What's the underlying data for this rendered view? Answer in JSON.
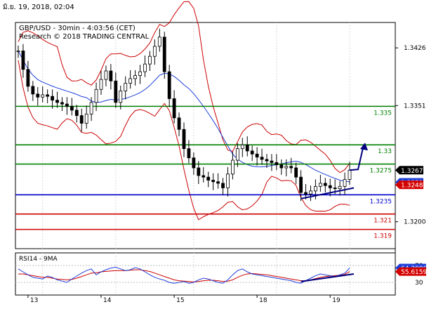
{
  "header": {
    "datetime": "มิ.ย. 19, 2018, 02:04"
  },
  "chart_data": [
    {
      "type": "line",
      "title": "GBP/USD - 30min - 4:03:56 (CET)",
      "subtitle": "Research © 2018 TRADING CENTRAL",
      "ylim": [
        3.1965,
        3.1459
      ],
      "y_ticks": [
        1.3426,
        1.3351,
        1.32
      ],
      "x_tick_labels": [
        "13",
        "14",
        "15",
        "18",
        "19"
      ],
      "levels": [
        {
          "label": "1.335",
          "value": 1.335,
          "color": "#008000"
        },
        {
          "label": "1.33",
          "value": 1.33,
          "color": "#008000"
        },
        {
          "label": "1.3275",
          "value": 1.3275,
          "color": "#008000"
        },
        {
          "label": "1.3235",
          "value": 1.3235,
          "color": "#0000cc"
        },
        {
          "label": "1.321",
          "value": 1.321,
          "color": "#cc0000"
        },
        {
          "label": "1.319",
          "value": 1.319,
          "color": "#cc0000"
        }
      ],
      "price_labels": [
        {
          "label": "1.3267",
          "value": 1.3267,
          "bg": "#000000",
          "fg": "#ffffff"
        },
        {
          "label": "1.32513",
          "value": 1.32513,
          "bg": "#1f3fd8",
          "fg": "#ffffff"
        },
        {
          "label": "1.3248",
          "value": 1.3248,
          "bg": "#d40000",
          "fg": "#ffffff"
        }
      ],
      "series": [
        {
          "values": [
            1.3422,
            1.3398,
            1.3376,
            1.3366,
            1.3362,
            1.3365,
            1.3363,
            1.3358,
            1.3355,
            1.3353,
            1.335,
            1.3345,
            1.3338,
            1.3328,
            1.334,
            1.3355,
            1.3372,
            1.3385,
            1.3396,
            1.3383,
            1.3355,
            1.337,
            1.338,
            1.3386,
            1.339,
            1.3395,
            1.3405,
            1.3415,
            1.3428,
            1.344,
            1.3395,
            1.336,
            1.3335,
            1.332,
            1.3295,
            1.3283,
            1.327,
            1.326,
            1.3258,
            1.3254,
            1.3252,
            1.325,
            1.3244,
            1.3262,
            1.328,
            1.3295,
            1.33,
            1.3292,
            1.3288,
            1.3284,
            1.3281,
            1.3279,
            1.3277,
            1.3274,
            1.327,
            1.3272,
            1.327,
            1.3258,
            1.3238,
            1.3236,
            1.324,
            1.3246,
            1.325,
            1.3247,
            1.3244,
            1.3243,
            1.3246,
            1.3255,
            1.3267
          ]
        }
      ]
    },
    {
      "type": "line",
      "title": "RSI14 - 9MA",
      "ylim": [
        0,
        100
      ],
      "y_ticks": [
        70,
        30
      ],
      "price_labels": [
        {
          "label": "64.2006",
          "value": 64.2006,
          "bg": "#1f3fd8",
          "fg": "#ffffff"
        },
        {
          "label": "55.6159",
          "value": 55.6159,
          "bg": "#d40000",
          "fg": "#ffffff"
        }
      ],
      "series": [
        {
          "values": [
            62,
            55,
            48,
            42,
            40,
            38,
            45,
            42,
            36,
            33,
            30,
            38,
            45,
            52,
            58,
            62,
            48,
            55,
            60,
            64,
            66,
            62,
            58,
            60,
            65,
            62,
            55,
            48,
            42,
            38,
            35,
            30,
            28,
            30,
            32,
            28,
            30,
            36,
            40,
            38,
            34,
            30,
            28,
            36,
            48,
            58,
            62,
            55,
            50,
            48,
            46,
            44,
            42,
            40,
            38,
            36,
            34,
            30,
            28,
            34,
            40,
            46,
            50,
            48,
            46,
            44,
            48,
            52,
            64.2
          ]
        },
        {
          "values": [
            50,
            50,
            48,
            46,
            44,
            42,
            42,
            40,
            38,
            37,
            36,
            37,
            40,
            44,
            48,
            52,
            53,
            55,
            56,
            57,
            58,
            58,
            58,
            59,
            60,
            60,
            58,
            56,
            52,
            48,
            44,
            40,
            36,
            34,
            33,
            32,
            31,
            32,
            34,
            35,
            35,
            34,
            32,
            33,
            36,
            42,
            47,
            50,
            51,
            50,
            49,
            48,
            46,
            44,
            42,
            40,
            38,
            36,
            34,
            34,
            36,
            39,
            42,
            44,
            45,
            46,
            47,
            49,
            55.6
          ]
        }
      ]
    }
  ]
}
